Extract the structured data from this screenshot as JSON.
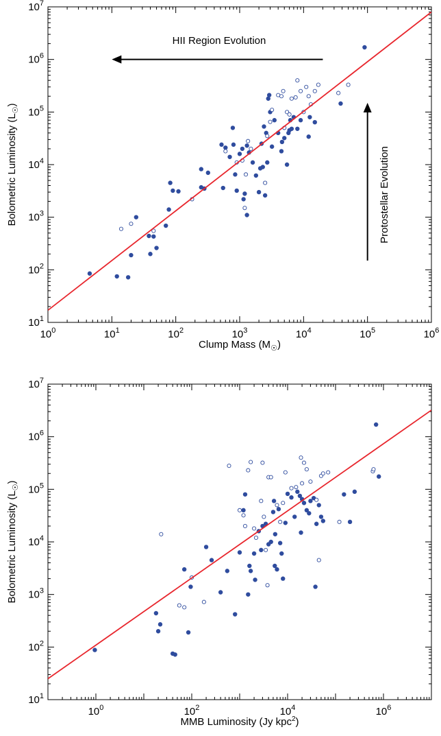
{
  "colors": {
    "point": "#2f4c9e",
    "fit_line": "#e8262d",
    "axis": "#000000",
    "arrow": "#000000"
  },
  "chart_data": [
    {
      "type": "scatter",
      "title": "",
      "xlabel": "Clump Mass (M",
      "xlabel_suffix": ")",
      "ylabel": "Bolometric Luminosity  (L",
      "ylabel_suffix": ")",
      "xscale": "log",
      "yscale": "log",
      "xlim": [
        1,
        1000000
      ],
      "ylim": [
        10,
        10000000
      ],
      "xticks": [
        {
          "value": 1,
          "base": "10",
          "exp": "0"
        },
        {
          "value": 10,
          "base": "10",
          "exp": "1"
        },
        {
          "value": 100,
          "base": "10",
          "exp": "2"
        },
        {
          "value": 1000,
          "base": "10",
          "exp": "3"
        },
        {
          "value": 10000,
          "base": "10",
          "exp": "4"
        },
        {
          "value": 100000,
          "base": "10",
          "exp": "5"
        },
        {
          "value": 1000000,
          "base": "10",
          "exp": "6"
        }
      ],
      "yticks": [
        {
          "value": 10,
          "base": "10",
          "exp": "1"
        },
        {
          "value": 100,
          "base": "10",
          "exp": "2"
        },
        {
          "value": 1000,
          "base": "10",
          "exp": "3"
        },
        {
          "value": 10000,
          "base": "10",
          "exp": "4"
        },
        {
          "value": 100000,
          "base": "10",
          "exp": "5"
        },
        {
          "value": 1000000,
          "base": "10",
          "exp": "6"
        },
        {
          "value": 10000000,
          "base": "10",
          "exp": "7"
        }
      ],
      "grid": false,
      "fit_line": {
        "x": [
          1,
          1000000
        ],
        "y": [
          17,
          8000000
        ]
      },
      "annotations": [
        {
          "text": "HII Region Evolution",
          "direction": "left",
          "arrow_from": [
            20000,
            1000000
          ],
          "arrow_to": [
            10,
            1000000
          ]
        },
        {
          "text": "Protostellar Evolution",
          "direction": "up",
          "arrow_from": [
            100000,
            150
          ],
          "arrow_to": [
            100000,
            150000
          ]
        }
      ],
      "series": [
        {
          "marker": "filled",
          "points": [
            [
              4.5,
              85
            ],
            [
              12,
              75
            ],
            [
              18,
              72
            ],
            [
              20,
              190
            ],
            [
              24,
              1000
            ],
            [
              38,
              440
            ],
            [
              40,
              200
            ],
            [
              45,
              430
            ],
            [
              50,
              260
            ],
            [
              70,
              690
            ],
            [
              78,
              1400
            ],
            [
              82,
              4500
            ],
            [
              90,
              3200
            ],
            [
              110,
              3100
            ],
            [
              250,
              8200
            ],
            [
              250,
              3700
            ],
            [
              280,
              3500
            ],
            [
              320,
              7000
            ],
            [
              520,
              24000
            ],
            [
              550,
              3600
            ],
            [
              600,
              21000
            ],
            [
              700,
              14000
            ],
            [
              780,
              50000
            ],
            [
              800,
              24000
            ],
            [
              850,
              6500
            ],
            [
              900,
              3200
            ],
            [
              1000,
              16000
            ],
            [
              1100,
              20000
            ],
            [
              1150,
              2200
            ],
            [
              1200,
              2800
            ],
            [
              1300,
              1100
            ],
            [
              1300,
              23000
            ],
            [
              1400,
              17000
            ],
            [
              1600,
              11000
            ],
            [
              1800,
              6200
            ],
            [
              2000,
              3000
            ],
            [
              2100,
              8500
            ],
            [
              2200,
              25000
            ],
            [
              2300,
              9000
            ],
            [
              2400,
              53000
            ],
            [
              2500,
              2600
            ],
            [
              2600,
              40000
            ],
            [
              2700,
              11000
            ],
            [
              2800,
              180000
            ],
            [
              2900,
              210000
            ],
            [
              3000,
              100000
            ],
            [
              3200,
              22000
            ],
            [
              3500,
              70000
            ],
            [
              4000,
              40000
            ],
            [
              4500,
              18000
            ],
            [
              4600,
              27000
            ],
            [
              5000,
              32000
            ],
            [
              5500,
              10000
            ],
            [
              5800,
              40000
            ],
            [
              6000,
              45000
            ],
            [
              6200,
              70000
            ],
            [
              6500,
              48000
            ],
            [
              7000,
              80000
            ],
            [
              8000,
              48000
            ],
            [
              9000,
              70000
            ],
            [
              12000,
              34000
            ],
            [
              12500,
              80000
            ],
            [
              15000,
              64000
            ],
            [
              38000,
              145000
            ],
            [
              90000,
              1700000
            ]
          ]
        },
        {
          "marker": "open",
          "points": [
            [
              14,
              600
            ],
            [
              20,
              750
            ],
            [
              45,
              550
            ],
            [
              180,
              2200
            ],
            [
              600,
              18000
            ],
            [
              900,
              11000
            ],
            [
              1100,
              12000
            ],
            [
              1200,
              1500
            ],
            [
              1250,
              6500
            ],
            [
              1350,
              28000
            ],
            [
              1500,
              20000
            ],
            [
              2500,
              4500
            ],
            [
              2700,
              35000
            ],
            [
              3000,
              65000
            ],
            [
              3200,
              110000
            ],
            [
              4000,
              210000
            ],
            [
              4500,
              200000
            ],
            [
              4800,
              250000
            ],
            [
              5000,
              50000
            ],
            [
              5500,
              100000
            ],
            [
              6000,
              90000
            ],
            [
              6500,
              180000
            ],
            [
              7500,
              190000
            ],
            [
              8000,
              400000
            ],
            [
              9000,
              250000
            ],
            [
              10000,
              100000
            ],
            [
              11000,
              300000
            ],
            [
              12000,
              200000
            ],
            [
              13000,
              140000
            ],
            [
              15000,
              250000
            ],
            [
              17000,
              330000
            ],
            [
              35000,
              230000
            ],
            [
              50000,
              330000
            ]
          ]
        }
      ]
    },
    {
      "type": "scatter",
      "title": "",
      "xlabel": "MMB Luminosity (Jy kpc",
      "xlabel_sup": "2",
      "xlabel_suffix": ")",
      "ylabel": "Bolometric Luminosity  (L",
      "ylabel_suffix": ")",
      "xscale": "log",
      "yscale": "log",
      "xlim": [
        0.1,
        10000000
      ],
      "ylim": [
        10,
        10000000
      ],
      "xticks": [
        {
          "value": 1,
          "base": "10",
          "exp": "0"
        },
        {
          "value": 100,
          "base": "10",
          "exp": "2"
        },
        {
          "value": 10000,
          "base": "10",
          "exp": "4"
        },
        {
          "value": 1000000,
          "base": "10",
          "exp": "6"
        }
      ],
      "yticks": [
        {
          "value": 10,
          "base": "10",
          "exp": "1"
        },
        {
          "value": 100,
          "base": "10",
          "exp": "2"
        },
        {
          "value": 1000,
          "base": "10",
          "exp": "3"
        },
        {
          "value": 10000,
          "base": "10",
          "exp": "4"
        },
        {
          "value": 100000,
          "base": "10",
          "exp": "5"
        },
        {
          "value": 1000000,
          "base": "10",
          "exp": "6"
        },
        {
          "value": 10000000,
          "base": "10",
          "exp": "7"
        }
      ],
      "grid": false,
      "fit_line": {
        "x": [
          0.1,
          10000000
        ],
        "y": [
          25,
          3200000
        ]
      },
      "series": [
        {
          "marker": "filled",
          "points": [
            [
              0.95,
              88
            ],
            [
              18,
              440
            ],
            [
              20,
              200
            ],
            [
              22,
              270
            ],
            [
              40,
              75
            ],
            [
              45,
              72
            ],
            [
              70,
              3000
            ],
            [
              85,
              190
            ],
            [
              95,
              1400
            ],
            [
              200,
              8000
            ],
            [
              260,
              4500
            ],
            [
              400,
              1100
            ],
            [
              550,
              2800
            ],
            [
              800,
              420
            ],
            [
              1000,
              6300
            ],
            [
              1200,
              40000
            ],
            [
              1300,
              80000
            ],
            [
              1500,
              1000
            ],
            [
              1600,
              3500
            ],
            [
              1700,
              2800
            ],
            [
              2000,
              6000
            ],
            [
              2100,
              1900
            ],
            [
              2500,
              16000
            ],
            [
              2800,
              7000
            ],
            [
              3000,
              20000
            ],
            [
              3500,
              22000
            ],
            [
              4000,
              9000
            ],
            [
              4500,
              10000
            ],
            [
              5000,
              37000
            ],
            [
              5200,
              60000
            ],
            [
              5400,
              3500
            ],
            [
              5500,
              14000
            ],
            [
              6000,
              3000
            ],
            [
              6500,
              42000
            ],
            [
              7000,
              9500
            ],
            [
              7500,
              6000
            ],
            [
              8000,
              2000
            ],
            [
              9000,
              23000
            ],
            [
              10000,
              82000
            ],
            [
              12000,
              70000
            ],
            [
              14000,
              30000
            ],
            [
              16000,
              90000
            ],
            [
              18000,
              75000
            ],
            [
              19000,
              15000
            ],
            [
              20000,
              65000
            ],
            [
              22000,
              55000
            ],
            [
              25000,
              40000
            ],
            [
              28000,
              35000
            ],
            [
              30000,
              60000
            ],
            [
              35000,
              68000
            ],
            [
              38000,
              1400
            ],
            [
              40000,
              22000
            ],
            [
              45000,
              50000
            ],
            [
              50000,
              30000
            ],
            [
              55000,
              25000
            ],
            [
              150000,
              80000
            ],
            [
              200000,
              24000
            ],
            [
              250000,
              90000
            ],
            [
              700000,
              1700000
            ],
            [
              800000,
              175000
            ]
          ]
        },
        {
          "marker": "open",
          "points": [
            [
              23,
              14000
            ],
            [
              55,
              620
            ],
            [
              70,
              570
            ],
            [
              100,
              2100
            ],
            [
              180,
              720
            ],
            [
              600,
              280000
            ],
            [
              1000,
              40000
            ],
            [
              1200,
              32000
            ],
            [
              1300,
              20000
            ],
            [
              1500,
              230000
            ],
            [
              1700,
              330000
            ],
            [
              2000,
              18000
            ],
            [
              2200,
              12000
            ],
            [
              2800,
              60000
            ],
            [
              3000,
              320000
            ],
            [
              3200,
              30000
            ],
            [
              3500,
              7000
            ],
            [
              3800,
              1500
            ],
            [
              4000,
              170000
            ],
            [
              4500,
              170000
            ],
            [
              6000,
              50000
            ],
            [
              7000,
              24000
            ],
            [
              8000,
              55000
            ],
            [
              9000,
              210000
            ],
            [
              12000,
              105000
            ],
            [
              15000,
              110000
            ],
            [
              19000,
              400000
            ],
            [
              20000,
              130000
            ],
            [
              22000,
              320000
            ],
            [
              25000,
              240000
            ],
            [
              30000,
              140000
            ],
            [
              40000,
              63000
            ],
            [
              45000,
              4500
            ],
            [
              50000,
              180000
            ],
            [
              55000,
              200000
            ],
            [
              70000,
              210000
            ],
            [
              120000,
              24000
            ],
            [
              600000,
              220000
            ],
            [
              620000,
              240000
            ]
          ]
        }
      ]
    }
  ]
}
